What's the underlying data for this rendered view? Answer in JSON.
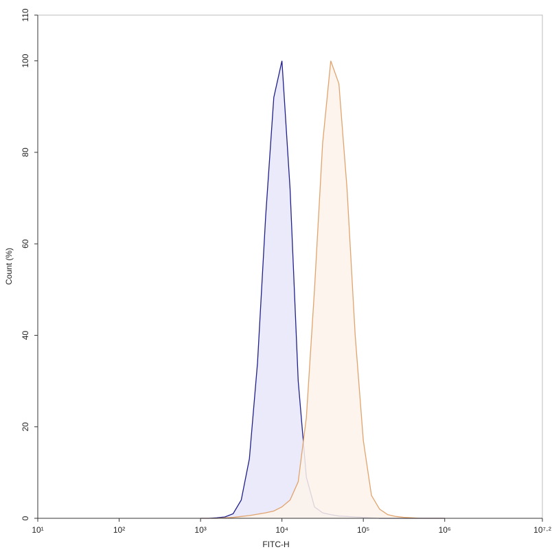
{
  "chart_data": {
    "type": "histogram-overlay",
    "xlabel": "FITC-H",
    "ylabel": "Count (%)",
    "xscale": "log",
    "xlim": [
      10,
      15848932
    ],
    "xticks": [
      {
        "value": 10,
        "label": "10¹"
      },
      {
        "value": 100,
        "label": "10²"
      },
      {
        "value": 1000,
        "label": "10³"
      },
      {
        "value": 10000,
        "label": "10⁴"
      },
      {
        "value": 100000,
        "label": "10⁵"
      },
      {
        "value": 1000000,
        "label": "10⁶"
      },
      {
        "value": 15848932,
        "label": "10⁷·²"
      }
    ],
    "ylim": [
      0,
      110
    ],
    "yticks": [
      0,
      20,
      40,
      60,
      80,
      100,
      110
    ],
    "x": [
      1000,
      1259,
      1585,
      1995,
      2512,
      3162,
      3981,
      5012,
      6310,
      7943,
      10000,
      12589,
      15849,
      19953,
      25119,
      31623,
      39811,
      50119,
      63096,
      79433,
      100000,
      125893,
      158489,
      199526,
      251189,
      316228,
      398107,
      501187,
      630957,
      794328,
      1000000
    ],
    "series": [
      {
        "color": "#1f1f8a",
        "fill": "#e6e6fa",
        "values": [
          0,
          0,
          0.1,
          0.3,
          1,
          4,
          13,
          34,
          66,
          92,
          100,
          72,
          30,
          9,
          2.5,
          1.2,
          0.8,
          0.5,
          0.4,
          0.3,
          0.2,
          0.1,
          0,
          0,
          0,
          0,
          0,
          0,
          0,
          0,
          0
        ]
      },
      {
        "color": "#e0a36d",
        "fill": "#fdf3ea",
        "values": [
          0,
          0,
          0,
          0.1,
          0.2,
          0.4,
          0.6,
          0.9,
          1.2,
          1.6,
          2.5,
          4,
          8,
          22,
          50,
          82,
          100,
          95,
          72,
          40,
          17,
          5,
          2,
          0.8,
          0.4,
          0.2,
          0.1,
          0,
          0,
          0,
          0
        ]
      }
    ]
  }
}
